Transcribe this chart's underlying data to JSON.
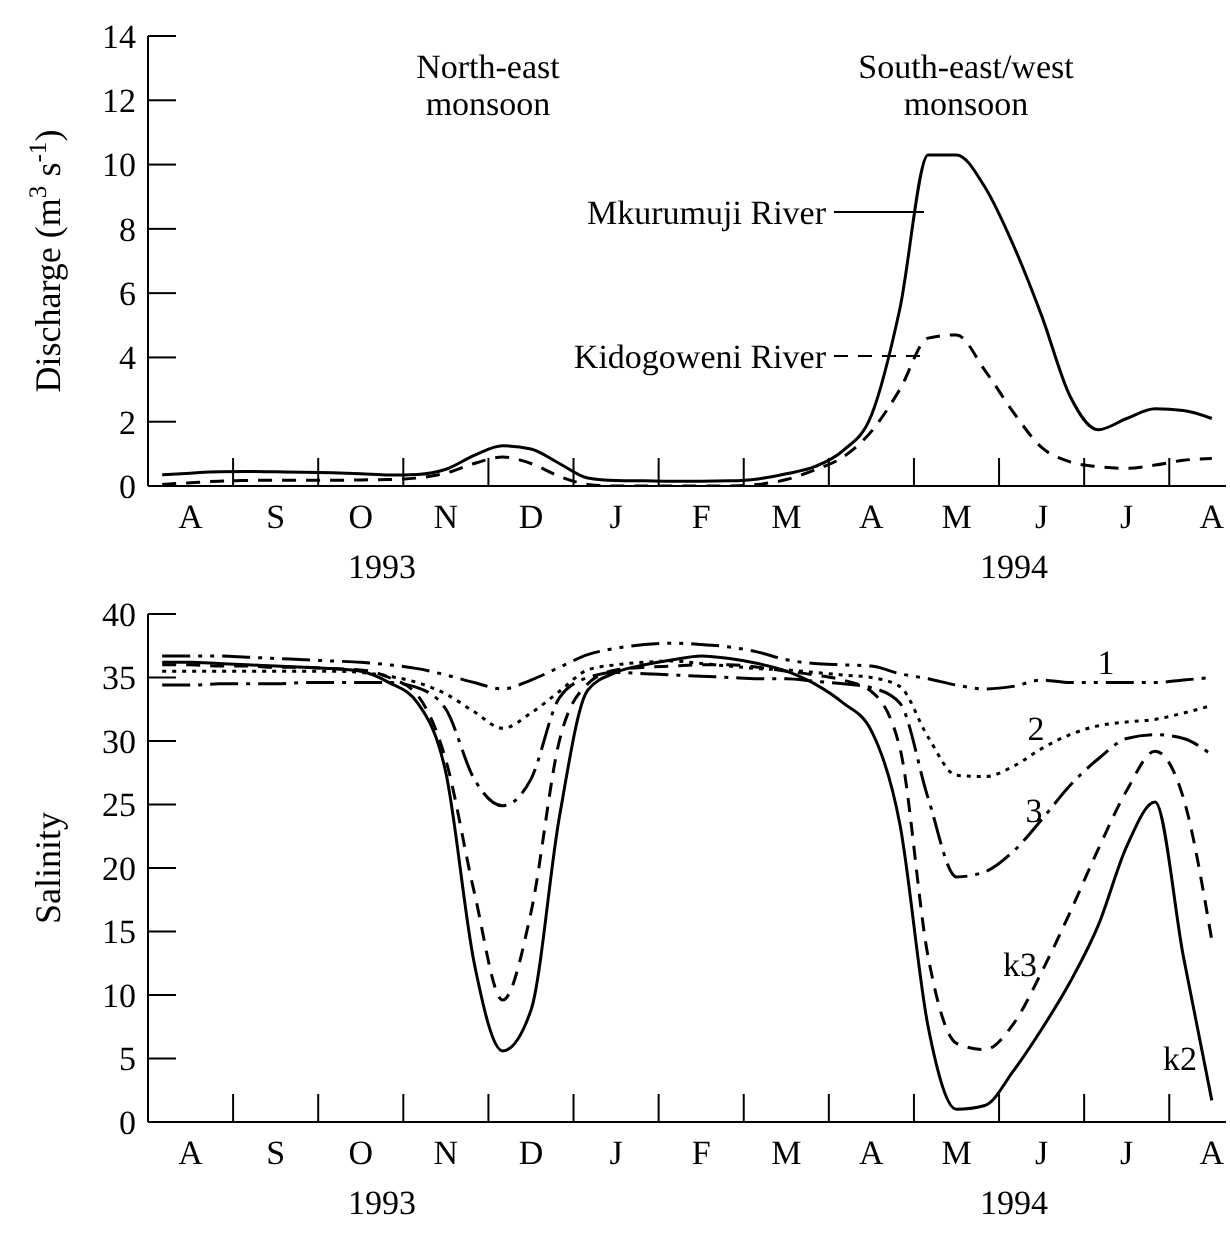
{
  "chart_data": [
    {
      "type": "line",
      "ylabel": "Discharge (m$^{3}$ s$^{-1}$)",
      "ylim": [
        0,
        14
      ],
      "yticks": [
        0,
        2,
        4,
        6,
        8,
        10,
        12,
        14
      ],
      "categories": [
        null,
        "A",
        null,
        null,
        "S",
        null,
        null,
        "O",
        null,
        null,
        "N",
        null,
        null,
        "D",
        null,
        null,
        "J",
        null,
        null,
        "F",
        null,
        null,
        "M",
        null,
        null,
        "A",
        null,
        null,
        "M",
        null,
        null,
        "J",
        null,
        null,
        "J",
        null,
        null,
        "A"
      ],
      "annotations": [
        "North-east monsoon",
        "South-east/west monsoon",
        "1993",
        "1994"
      ],
      "legend": "center",
      "series": [
        {
          "name": "Mkurumuji River",
          "color": "#000000",
          "line_style": "solid",
          "values": [
            0.35,
            0.4,
            0.44,
            0.45,
            0.44,
            0.43,
            0.41,
            0.38,
            0.34,
            0.36,
            0.52,
            0.95,
            1.25,
            1.15,
            0.7,
            0.25,
            0.17,
            0.16,
            0.15,
            0.15,
            0.16,
            0.22,
            0.38,
            0.6,
            1.1,
            2.2,
            5.5,
            10.3,
            10.3,
            9.3,
            7.5,
            5.3,
            2.8,
            1.75,
            2.1,
            2.4,
            2.35,
            2.1
          ]
        },
        {
          "name": "Kidogoweni River",
          "color": "#000000",
          "line_style": "dashed",
          "values": [
            0.05,
            0.1,
            0.15,
            0.17,
            0.18,
            0.18,
            0.18,
            0.19,
            0.2,
            0.25,
            0.4,
            0.7,
            0.9,
            0.7,
            0.3,
            0.05,
            0,
            0,
            0,
            0,
            0,
            0.05,
            0.2,
            0.5,
            0.9,
            1.7,
            3.0,
            4.6,
            4.7,
            3.6,
            2.3,
            1.2,
            0.75,
            0.6,
            0.55,
            0.65,
            0.8,
            0.86
          ]
        }
      ]
    },
    {
      "type": "line",
      "ylabel": "Salinity",
      "ylim": [
        0,
        40
      ],
      "yticks": [
        0,
        5,
        10,
        15,
        20,
        25,
        30,
        35,
        40
      ],
      "categories": [
        null,
        "A",
        null,
        null,
        "S",
        null,
        null,
        "O",
        null,
        null,
        "N",
        null,
        null,
        "D",
        null,
        null,
        "J",
        null,
        null,
        "F",
        null,
        null,
        "M",
        null,
        null,
        "A",
        null,
        null,
        "M",
        null,
        null,
        "J",
        null,
        null,
        "J",
        null,
        null,
        "A"
      ],
      "annotations": [
        "1993",
        "1994"
      ],
      "series": [
        {
          "name": "1",
          "color": "#000000",
          "line_style": "dashdotdot",
          "values": [
            36.7,
            36.7,
            36.7,
            36.6,
            36.5,
            36.4,
            36.3,
            36.2,
            36.0,
            35.7,
            35.2,
            34.6,
            34.1,
            34.8,
            35.8,
            36.8,
            37.3,
            37.6,
            37.7,
            37.6,
            37.4,
            37.0,
            36.4,
            36.1,
            36.0,
            35.9,
            35.3,
            34.9,
            34.4,
            34.1,
            34.3,
            34.8,
            34.6,
            34.6,
            34.6,
            34.6,
            34.8,
            35.0
          ]
        },
        {
          "name": "2",
          "color": "#000000",
          "line_style": "dotted",
          "values": [
            35.5,
            35.5,
            35.5,
            35.5,
            35.5,
            35.5,
            35.5,
            35.4,
            35.1,
            34.6,
            33.7,
            32.3,
            31.0,
            32.2,
            33.9,
            35.6,
            36.0,
            36.2,
            36.3,
            36.1,
            35.9,
            35.7,
            35.6,
            35.4,
            35.2,
            35.0,
            34.3,
            30.3,
            27.3,
            27.2,
            28.0,
            29.4,
            30.5,
            31.2,
            31.5,
            31.7,
            32.2,
            32.8
          ]
        },
        {
          "name": "3",
          "color": "#000000",
          "line_style": "dashdot",
          "values": [
            34.4,
            34.4,
            34.5,
            34.5,
            34.5,
            34.6,
            34.6,
            34.6,
            34.6,
            34.2,
            32.5,
            27.0,
            24.9,
            27.0,
            33.4,
            35.0,
            35.4,
            35.3,
            35.2,
            35.1,
            35.0,
            34.9,
            34.9,
            34.7,
            34.5,
            34.2,
            33.0,
            25.5,
            19.3,
            19.7,
            21.3,
            23.8,
            26.5,
            28.6,
            30.2,
            30.5,
            30.2,
            28.9
          ]
        },
        {
          "name": "k3",
          "color": "#000000",
          "line_style": "dashed",
          "values": [
            36.0,
            36.0,
            35.9,
            35.9,
            35.8,
            35.8,
            35.7,
            35.6,
            35.0,
            33.6,
            28.5,
            18.1,
            9.6,
            16.5,
            30.0,
            34.5,
            35.6,
            35.8,
            35.9,
            36.0,
            36.0,
            35.8,
            35.5,
            35.2,
            34.8,
            33.9,
            29.5,
            13.0,
            6.2,
            5.7,
            7.7,
            11.8,
            16.5,
            21.5,
            26.1,
            29.2,
            25.5,
            14.3
          ]
        },
        {
          "name": "k2",
          "color": "#000000",
          "line_style": "solid",
          "values": [
            36.2,
            36.2,
            36.1,
            36.0,
            35.9,
            35.8,
            35.7,
            35.5,
            34.6,
            33.0,
            27.5,
            12.5,
            5.6,
            8.8,
            24.0,
            34.0,
            35.4,
            36.0,
            36.4,
            36.7,
            36.5,
            36.1,
            35.5,
            34.5,
            33.0,
            30.8,
            23.5,
            7.5,
            1.0,
            1.3,
            4.0,
            7.3,
            11.0,
            15.5,
            21.7,
            25.2,
            13.0,
            1.7
          ]
        }
      ]
    }
  ]
}
